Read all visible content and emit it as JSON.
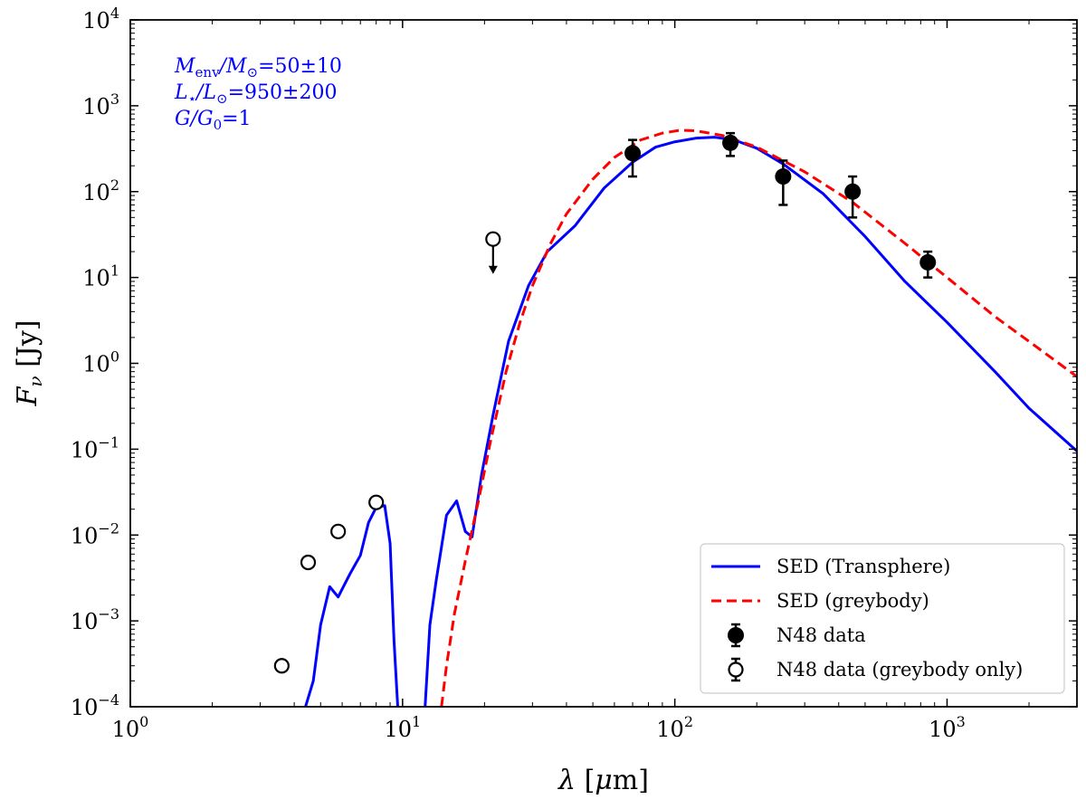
{
  "chart_data": {
    "type": "line",
    "xscale": "log",
    "yscale": "log",
    "xlim": [
      1,
      3000
    ],
    "ylim": [
      0.0001,
      10000
    ],
    "xlabel": "λ [μm]",
    "ylabel": "Fν [Jy]",
    "x_ticks": [
      {
        "value": 1,
        "base": "10",
        "exp": "0"
      },
      {
        "value": 10,
        "base": "10",
        "exp": "1"
      },
      {
        "value": 100,
        "base": "10",
        "exp": "2"
      },
      {
        "value": 1000,
        "base": "10",
        "exp": "3"
      }
    ],
    "y_ticks": [
      {
        "value": 0.0001,
        "base": "10",
        "exp": "−4"
      },
      {
        "value": 0.001,
        "base": "10",
        "exp": "−3"
      },
      {
        "value": 0.01,
        "base": "10",
        "exp": "−2"
      },
      {
        "value": 0.1,
        "base": "10",
        "exp": "−1"
      },
      {
        "value": 1,
        "base": "10",
        "exp": "0"
      },
      {
        "value": 10,
        "base": "10",
        "exp": "1"
      },
      {
        "value": 100,
        "base": "10",
        "exp": "2"
      },
      {
        "value": 1000,
        "base": "10",
        "exp": "3"
      },
      {
        "value": 10000,
        "base": "10",
        "exp": "4"
      }
    ],
    "annotations": [
      {
        "lhs": "M",
        "lhs_sub": "env",
        "mid": "/M",
        "mid_sub": "⊙",
        "rhs": "=50±10"
      },
      {
        "lhs": "L",
        "lhs_sub": "⋆",
        "mid": "/L",
        "mid_sub": "⊙",
        "rhs": "=950±200"
      },
      {
        "lhs": "G",
        "lhs_sub": "",
        "mid": "/G",
        "mid_sub": "0",
        "rhs": "=1"
      }
    ],
    "annotation_color": "#0000ff",
    "series": [
      {
        "name": "SED (Transphere)",
        "color": "#0000ff",
        "style": "solid",
        "segments": [
          [
            [
              4.4,
              0.0001
            ],
            [
              4.7,
              0.0002
            ],
            [
              5.0,
              0.0009
            ],
            [
              5.4,
              0.0025
            ],
            [
              5.8,
              0.0019
            ],
            [
              6.4,
              0.0035
            ],
            [
              7.0,
              0.0058
            ],
            [
              7.5,
              0.014
            ],
            [
              8.0,
              0.021
            ],
            [
              8.6,
              0.022
            ],
            [
              9.0,
              0.008
            ],
            [
              9.3,
              0.0006
            ],
            [
              9.6,
              0.0001
            ]
          ],
          [
            [
              12.1,
              0.0001
            ],
            [
              12.6,
              0.0009
            ],
            [
              13.3,
              0.003
            ],
            [
              14.5,
              0.017
            ],
            [
              15.8,
              0.025
            ],
            [
              17.0,
              0.011
            ],
            [
              18.0,
              0.0095
            ],
            [
              19.5,
              0.05
            ],
            [
              21.5,
              0.25
            ],
            [
              24.5,
              1.8
            ],
            [
              29.0,
              8.0
            ],
            [
              34.0,
              20.0
            ],
            [
              43.0,
              40.0
            ],
            [
              55.0,
              110.0
            ],
            [
              70.0,
              220.0
            ],
            [
              85.0,
              330.0
            ],
            [
              100.0,
              380.0
            ],
            [
              120.0,
              420.0
            ],
            [
              140.0,
              430.0
            ],
            [
              165.0,
              400.0
            ],
            [
              200.0,
              320.0
            ],
            [
              250.0,
              210.0
            ],
            [
              350.0,
              95.0
            ],
            [
              500.0,
              30.0
            ],
            [
              700.0,
              9.0
            ],
            [
              1000.0,
              3.0
            ],
            [
              1500.0,
              0.8
            ],
            [
              2000.0,
              0.3
            ],
            [
              3000.0,
              0.095
            ]
          ]
        ]
      },
      {
        "name": "SED (greybody)",
        "color": "#ff0000",
        "style": "dashed",
        "segments": [
          [
            [
              13.9,
              0.0001
            ],
            [
              14.5,
              0.0003
            ],
            [
              15.5,
              0.0012
            ],
            [
              17.0,
              0.005
            ],
            [
              19.0,
              0.025
            ],
            [
              21.0,
              0.12
            ],
            [
              24.0,
              0.8
            ],
            [
              27.0,
              3.0
            ],
            [
              30.0,
              8.0
            ],
            [
              35.0,
              25.0
            ],
            [
              40.0,
              55.0
            ],
            [
              50.0,
              140.0
            ],
            [
              60.0,
              250.0
            ],
            [
              75.0,
              400.0
            ],
            [
              90.0,
              480.0
            ],
            [
              105.0,
              520.0
            ],
            [
              120.0,
              510.0
            ],
            [
              150.0,
              450.0
            ],
            [
              200.0,
              330.0
            ],
            [
              300.0,
              170.0
            ],
            [
              450.0,
              75.0
            ],
            [
              700.0,
              25.0
            ],
            [
              1000.0,
              10.0
            ],
            [
              1500.0,
              3.5
            ],
            [
              2000.0,
              1.8
            ],
            [
              3000.0,
              0.7
            ]
          ]
        ]
      }
    ],
    "data_points": {
      "name": "N48 data",
      "points": [
        {
          "x": 70,
          "y": 280,
          "ylo": 150,
          "yhi": 400
        },
        {
          "x": 160,
          "y": 370,
          "ylo": 260,
          "yhi": 480
        },
        {
          "x": 250,
          "y": 150,
          "ylo": 70,
          "yhi": 230
        },
        {
          "x": 450,
          "y": 100,
          "ylo": 50,
          "yhi": 150
        },
        {
          "x": 850,
          "y": 15,
          "ylo": 10,
          "yhi": 20
        }
      ]
    },
    "greybody_only_points": {
      "name": "N48 data (greybody only)",
      "points": [
        {
          "x": 3.6,
          "y": 0.0003
        },
        {
          "x": 4.5,
          "y": 0.0048
        },
        {
          "x": 5.8,
          "y": 0.011
        },
        {
          "x": 8.0,
          "y": 0.024
        }
      ],
      "upper_limits": [
        {
          "x": 21.5,
          "y": 28,
          "arrow_to": 11
        }
      ]
    },
    "legend": {
      "position": "bottom-right",
      "entries": [
        {
          "label": "SED (Transphere)",
          "kind": "line",
          "color": "#0000ff",
          "style": "solid"
        },
        {
          "label": "SED (greybody)",
          "kind": "line",
          "color": "#ff0000",
          "style": "dashed"
        },
        {
          "label": "N48 data",
          "kind": "filled-marker",
          "color": "#000000"
        },
        {
          "label": "N48 data (greybody only)",
          "kind": "open-marker",
          "color": "#000000"
        }
      ]
    }
  }
}
